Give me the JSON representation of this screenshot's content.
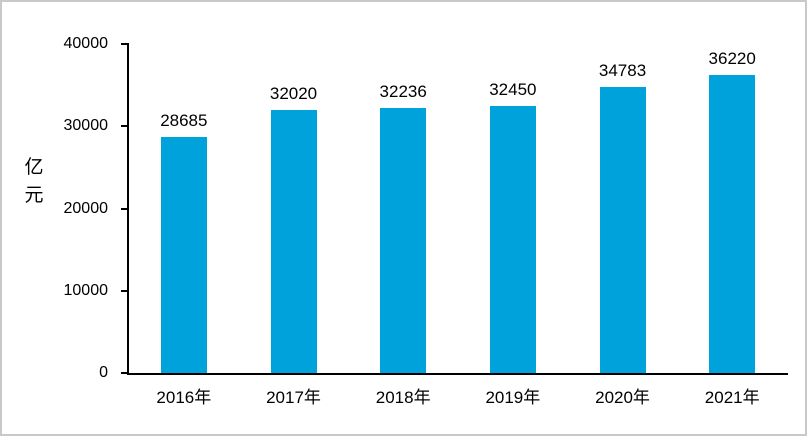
{
  "frame": {
    "background": "#ffffff",
    "border_color": "#c9c9c9"
  },
  "chart_data": {
    "type": "bar",
    "title": "",
    "categories": [
      "2016年",
      "2017年",
      "2018年",
      "2019年",
      "2020年",
      "2021年"
    ],
    "values": [
      28685,
      32020,
      32236,
      32450,
      34783,
      36220
    ],
    "data_labels": [
      "28685",
      "32020",
      "32236",
      "32450",
      "34783",
      "36220"
    ],
    "xlabel": "",
    "ylabel": "亿元",
    "ylim": [
      0,
      40000
    ],
    "yticks": [
      0,
      10000,
      20000,
      30000,
      40000
    ],
    "ytick_labels": [
      "0",
      "10000",
      "20000",
      "30000",
      "40000"
    ],
    "bar_color": "#00a2dc",
    "axis_color": "#000000",
    "text_color": "#000000",
    "grid": false,
    "legend": "none"
  }
}
